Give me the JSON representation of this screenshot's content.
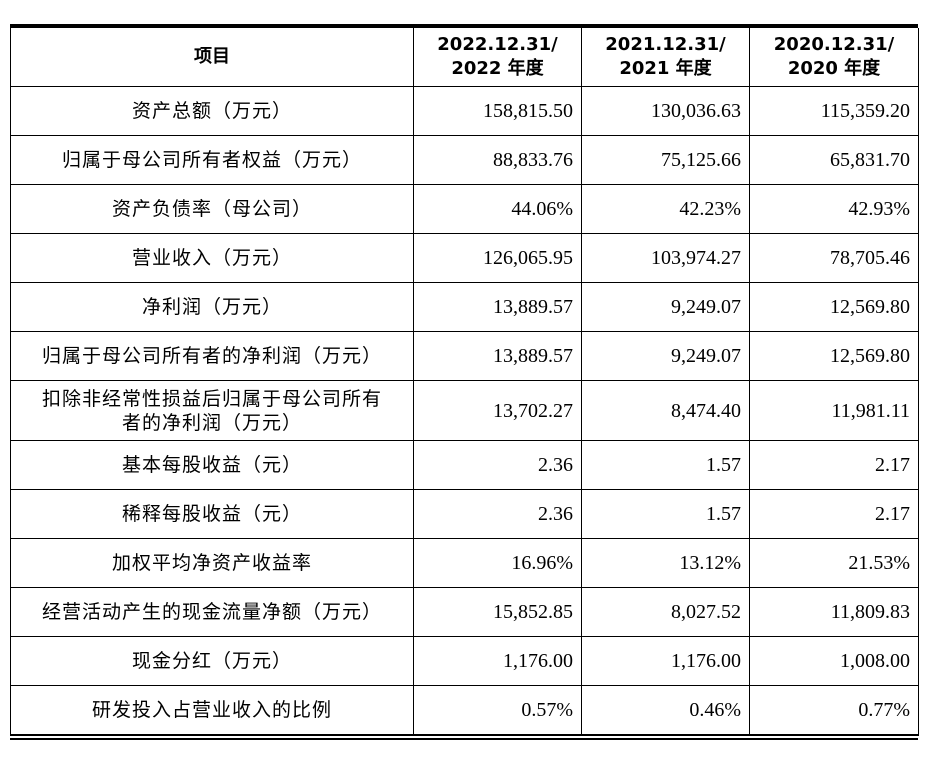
{
  "table": {
    "headers": [
      {
        "line1": "项目",
        "line2": ""
      },
      {
        "line1": "2022.12.31/",
        "line2": "2022 年度"
      },
      {
        "line1": "2021.12.31/",
        "line2": "2021 年度"
      },
      {
        "line1": "2020.12.31/",
        "line2": "2020 年度"
      }
    ],
    "rows": [
      {
        "label": "资产总额（万元）",
        "v2022": "158,815.50",
        "v2021": "130,036.63",
        "v2020": "115,359.20"
      },
      {
        "label": "归属于母公司所有者权益（万元）",
        "v2022": "88,833.76",
        "v2021": "75,125.66",
        "v2020": "65,831.70"
      },
      {
        "label": "资产负债率（母公司）",
        "v2022": "44.06%",
        "v2021": "42.23%",
        "v2020": "42.93%"
      },
      {
        "label": "营业收入（万元）",
        "v2022": "126,065.95",
        "v2021": "103,974.27",
        "v2020": "78,705.46"
      },
      {
        "label": "净利润（万元）",
        "v2022": "13,889.57",
        "v2021": "9,249.07",
        "v2020": "12,569.80"
      },
      {
        "label": "归属于母公司所有者的净利润（万元）",
        "v2022": "13,889.57",
        "v2021": "9,249.07",
        "v2020": "12,569.80"
      },
      {
        "label_line1": "扣除非经常性损益后归属于母公司所有",
        "label_line2": "者的净利润（万元）",
        "v2022": "13,702.27",
        "v2021": "8,474.40",
        "v2020": "11,981.11"
      },
      {
        "label": "基本每股收益（元）",
        "v2022": "2.36",
        "v2021": "1.57",
        "v2020": "2.17"
      },
      {
        "label": "稀释每股收益（元）",
        "v2022": "2.36",
        "v2021": "1.57",
        "v2020": "2.17"
      },
      {
        "label": "加权平均净资产收益率",
        "v2022": "16.96%",
        "v2021": "13.12%",
        "v2020": "21.53%"
      },
      {
        "label": "经营活动产生的现金流量净额（万元）",
        "v2022": "15,852.85",
        "v2021": "8,027.52",
        "v2020": "11,809.83"
      },
      {
        "label": "现金分红（万元）",
        "v2022": "1,176.00",
        "v2021": "1,176.00",
        "v2020": "1,008.00"
      },
      {
        "label": "研发投入占营业收入的比例",
        "v2022": "0.57%",
        "v2021": "0.46%",
        "v2020": "0.77%"
      }
    ]
  }
}
